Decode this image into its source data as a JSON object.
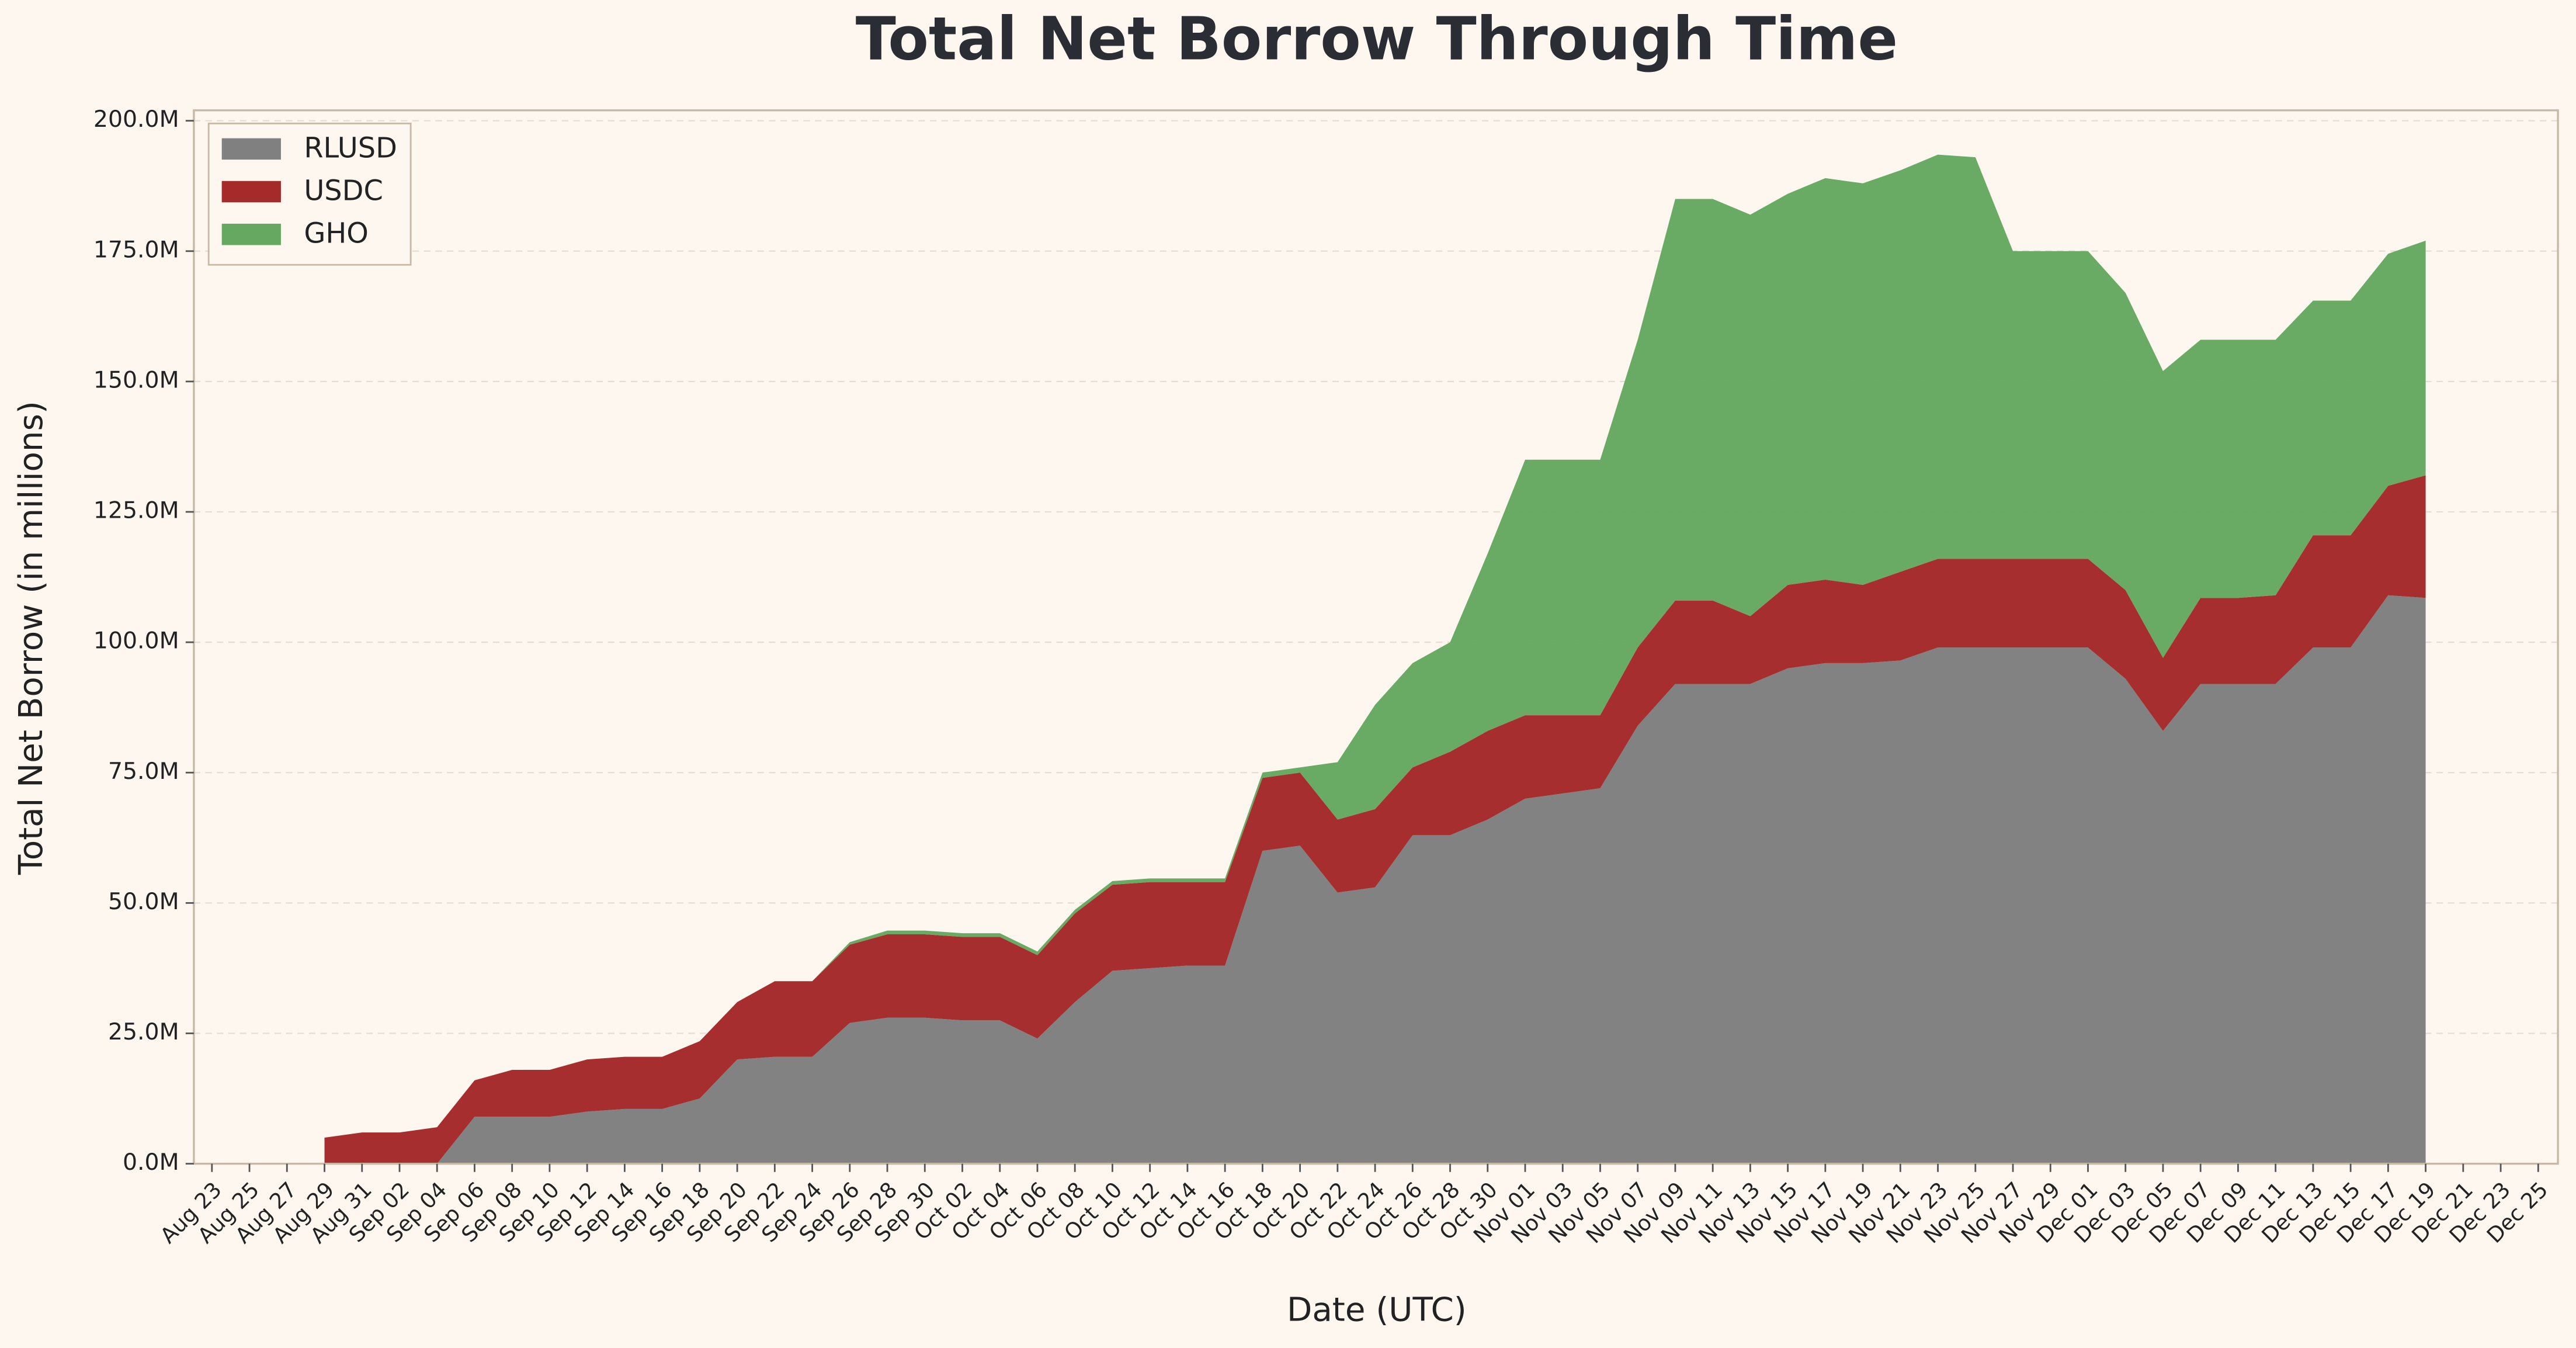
{
  "chart_data": {
    "type": "stacked_area",
    "title": "Total Net Borrow Through Time",
    "xlabel": "Date (UTC)",
    "ylabel": "Total Net Borrow (in millions)",
    "categories": [
      "Aug 23",
      "Aug 25",
      "Aug 27",
      "Aug 29",
      "Aug 31",
      "Sep 02",
      "Sep 04",
      "Sep 06",
      "Sep 08",
      "Sep 10",
      "Sep 12",
      "Sep 14",
      "Sep 16",
      "Sep 18",
      "Sep 20",
      "Sep 22",
      "Sep 24",
      "Sep 26",
      "Sep 28",
      "Sep 30",
      "Oct 02",
      "Oct 04",
      "Oct 06",
      "Oct 08",
      "Oct 10",
      "Oct 12",
      "Oct 14",
      "Oct 16",
      "Oct 18",
      "Oct 20",
      "Oct 22",
      "Oct 24",
      "Oct 26",
      "Oct 28",
      "Oct 30",
      "Nov 01",
      "Nov 03",
      "Nov 05",
      "Nov 07",
      "Nov 09",
      "Nov 11",
      "Nov 13",
      "Nov 15",
      "Nov 17",
      "Nov 19",
      "Nov 21",
      "Nov 23",
      "Nov 25",
      "Nov 27",
      "Nov 29",
      "Dec 01",
      "Dec 03",
      "Dec 05",
      "Dec 07",
      "Dec 09",
      "Dec 11",
      "Dec 13",
      "Dec 15",
      "Dec 17",
      "Dec 19",
      "Dec 21",
      "Dec 23",
      "Dec 25"
    ],
    "series": [
      {
        "name": "RLUSD",
        "color": "#808080",
        "values": [
          null,
          null,
          null,
          0,
          0,
          0,
          0,
          9,
          9,
          9,
          10,
          10.5,
          10.5,
          12.5,
          20,
          20.5,
          20.5,
          27,
          28,
          28,
          27.5,
          27.5,
          24,
          31,
          37,
          37.5,
          38,
          38,
          60,
          61,
          52,
          53,
          63,
          63,
          66,
          70,
          71,
          72,
          84,
          92,
          92,
          92,
          95,
          96,
          96,
          96.5,
          99,
          99,
          99,
          99,
          99,
          93,
          83,
          92,
          92,
          92,
          99,
          99,
          109,
          108.5,
          null,
          null,
          null
        ]
      },
      {
        "name": "USDC",
        "color": "#a52a2a",
        "values": [
          null,
          null,
          null,
          5,
          6,
          6,
          7,
          7,
          9,
          9,
          10,
          10,
          10,
          11,
          11,
          14.5,
          14.5,
          15,
          16,
          16,
          16,
          16,
          16,
          17,
          16.5,
          16.5,
          16,
          16,
          14,
          14,
          14,
          15,
          13,
          16,
          17,
          16,
          15,
          14,
          15,
          16,
          16,
          13,
          16,
          16,
          15,
          17,
          17,
          17,
          17,
          17,
          17,
          17,
          14,
          16.5,
          16.5,
          17,
          21.5,
          21.5,
          21,
          23.5,
          null,
          null,
          null
        ]
      },
      {
        "name": "GHO",
        "color": "#66a861",
        "values": [
          null,
          null,
          null,
          0,
          0,
          0,
          0,
          0,
          0,
          0,
          0,
          0,
          0,
          0,
          0,
          0,
          0,
          0.5,
          0.7,
          0.7,
          0.7,
          0.7,
          0.7,
          0.7,
          0.7,
          0.7,
          0.7,
          0.7,
          1,
          1,
          11,
          20,
          20,
          21,
          34,
          49,
          49,
          49,
          59,
          77,
          77,
          77,
          75,
          77,
          77,
          77,
          77.5,
          77,
          59,
          59,
          59,
          57,
          55,
          49.5,
          49.5,
          49,
          45,
          45,
          44.5,
          45,
          null,
          null,
          null
        ]
      }
    ],
    "ylim": [
      0,
      202
    ],
    "yticks": [
      {
        "value": 0,
        "label": "0.0M"
      },
      {
        "value": 25,
        "label": "25.0M"
      },
      {
        "value": 50,
        "label": "50.0M"
      },
      {
        "value": 75,
        "label": "75.0M"
      },
      {
        "value": 100,
        "label": "100.0M"
      },
      {
        "value": 125,
        "label": "125.0M"
      },
      {
        "value": 150,
        "label": "150.0M"
      },
      {
        "value": 175,
        "label": "175.0M"
      },
      {
        "value": 200,
        "label": "200.0M"
      }
    ],
    "grid": true,
    "legend": "upper left"
  }
}
